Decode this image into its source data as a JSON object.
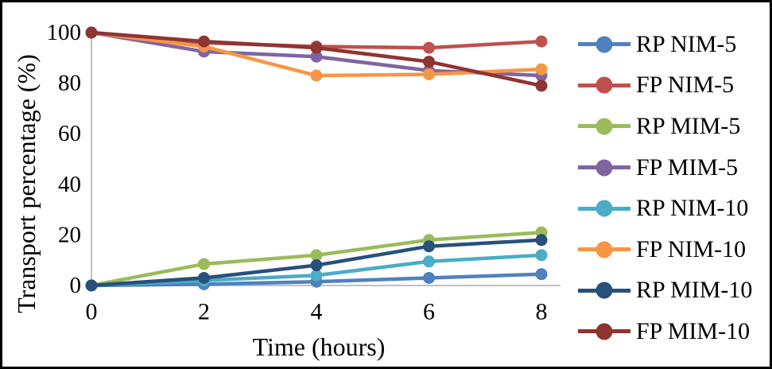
{
  "chart_data": {
    "type": "line",
    "title": "",
    "xlabel": "Time (hours)",
    "ylabel": "Transport percentage (%)",
    "x": [
      0,
      2,
      4,
      6,
      8
    ],
    "xtick_labels": [
      "0",
      "2",
      "4",
      "6",
      "8"
    ],
    "ytick_values": [
      0,
      20,
      40,
      60,
      80,
      100
    ],
    "ytick_labels": [
      "0",
      "20",
      "40",
      "60",
      "80",
      "100"
    ],
    "xlim": [
      0,
      8
    ],
    "ylim": [
      0,
      100
    ],
    "grid": false,
    "legend_position": "right",
    "marker": "circle",
    "axis_color": "#C0C0C0",
    "text_color": "#000000",
    "background_color": "#FFFFFF",
    "border_color": "#000000",
    "series": [
      {
        "name": "RP NIM-5",
        "color": "#4F81BD",
        "values": [
          0,
          0.5,
          1.5,
          3,
          4.5
        ]
      },
      {
        "name": "FP NIM-5",
        "color": "#C0504D",
        "values": [
          100,
          96,
          94.5,
          94,
          96.5
        ]
      },
      {
        "name": "RP MIM-5",
        "color": "#9BBB59",
        "values": [
          0,
          8.5,
          12,
          18,
          21
        ]
      },
      {
        "name": "FP MIM-5",
        "color": "#8064A2",
        "values": [
          100,
          92.5,
          90.5,
          85,
          83
        ]
      },
      {
        "name": "RP NIM-10",
        "color": "#4BACC6",
        "values": [
          0,
          2,
          4,
          9.5,
          12
        ]
      },
      {
        "name": "FP NIM-10",
        "color": "#F79646",
        "values": [
          100,
          94.5,
          83,
          83.5,
          85.5
        ]
      },
      {
        "name": "RP MIM-10",
        "color": "#27507B",
        "values": [
          0,
          3,
          8,
          15.5,
          18
        ]
      },
      {
        "name": "FP MIM-10",
        "color": "#8E3432",
        "values": [
          100,
          96.5,
          94,
          88.5,
          79
        ]
      }
    ]
  }
}
